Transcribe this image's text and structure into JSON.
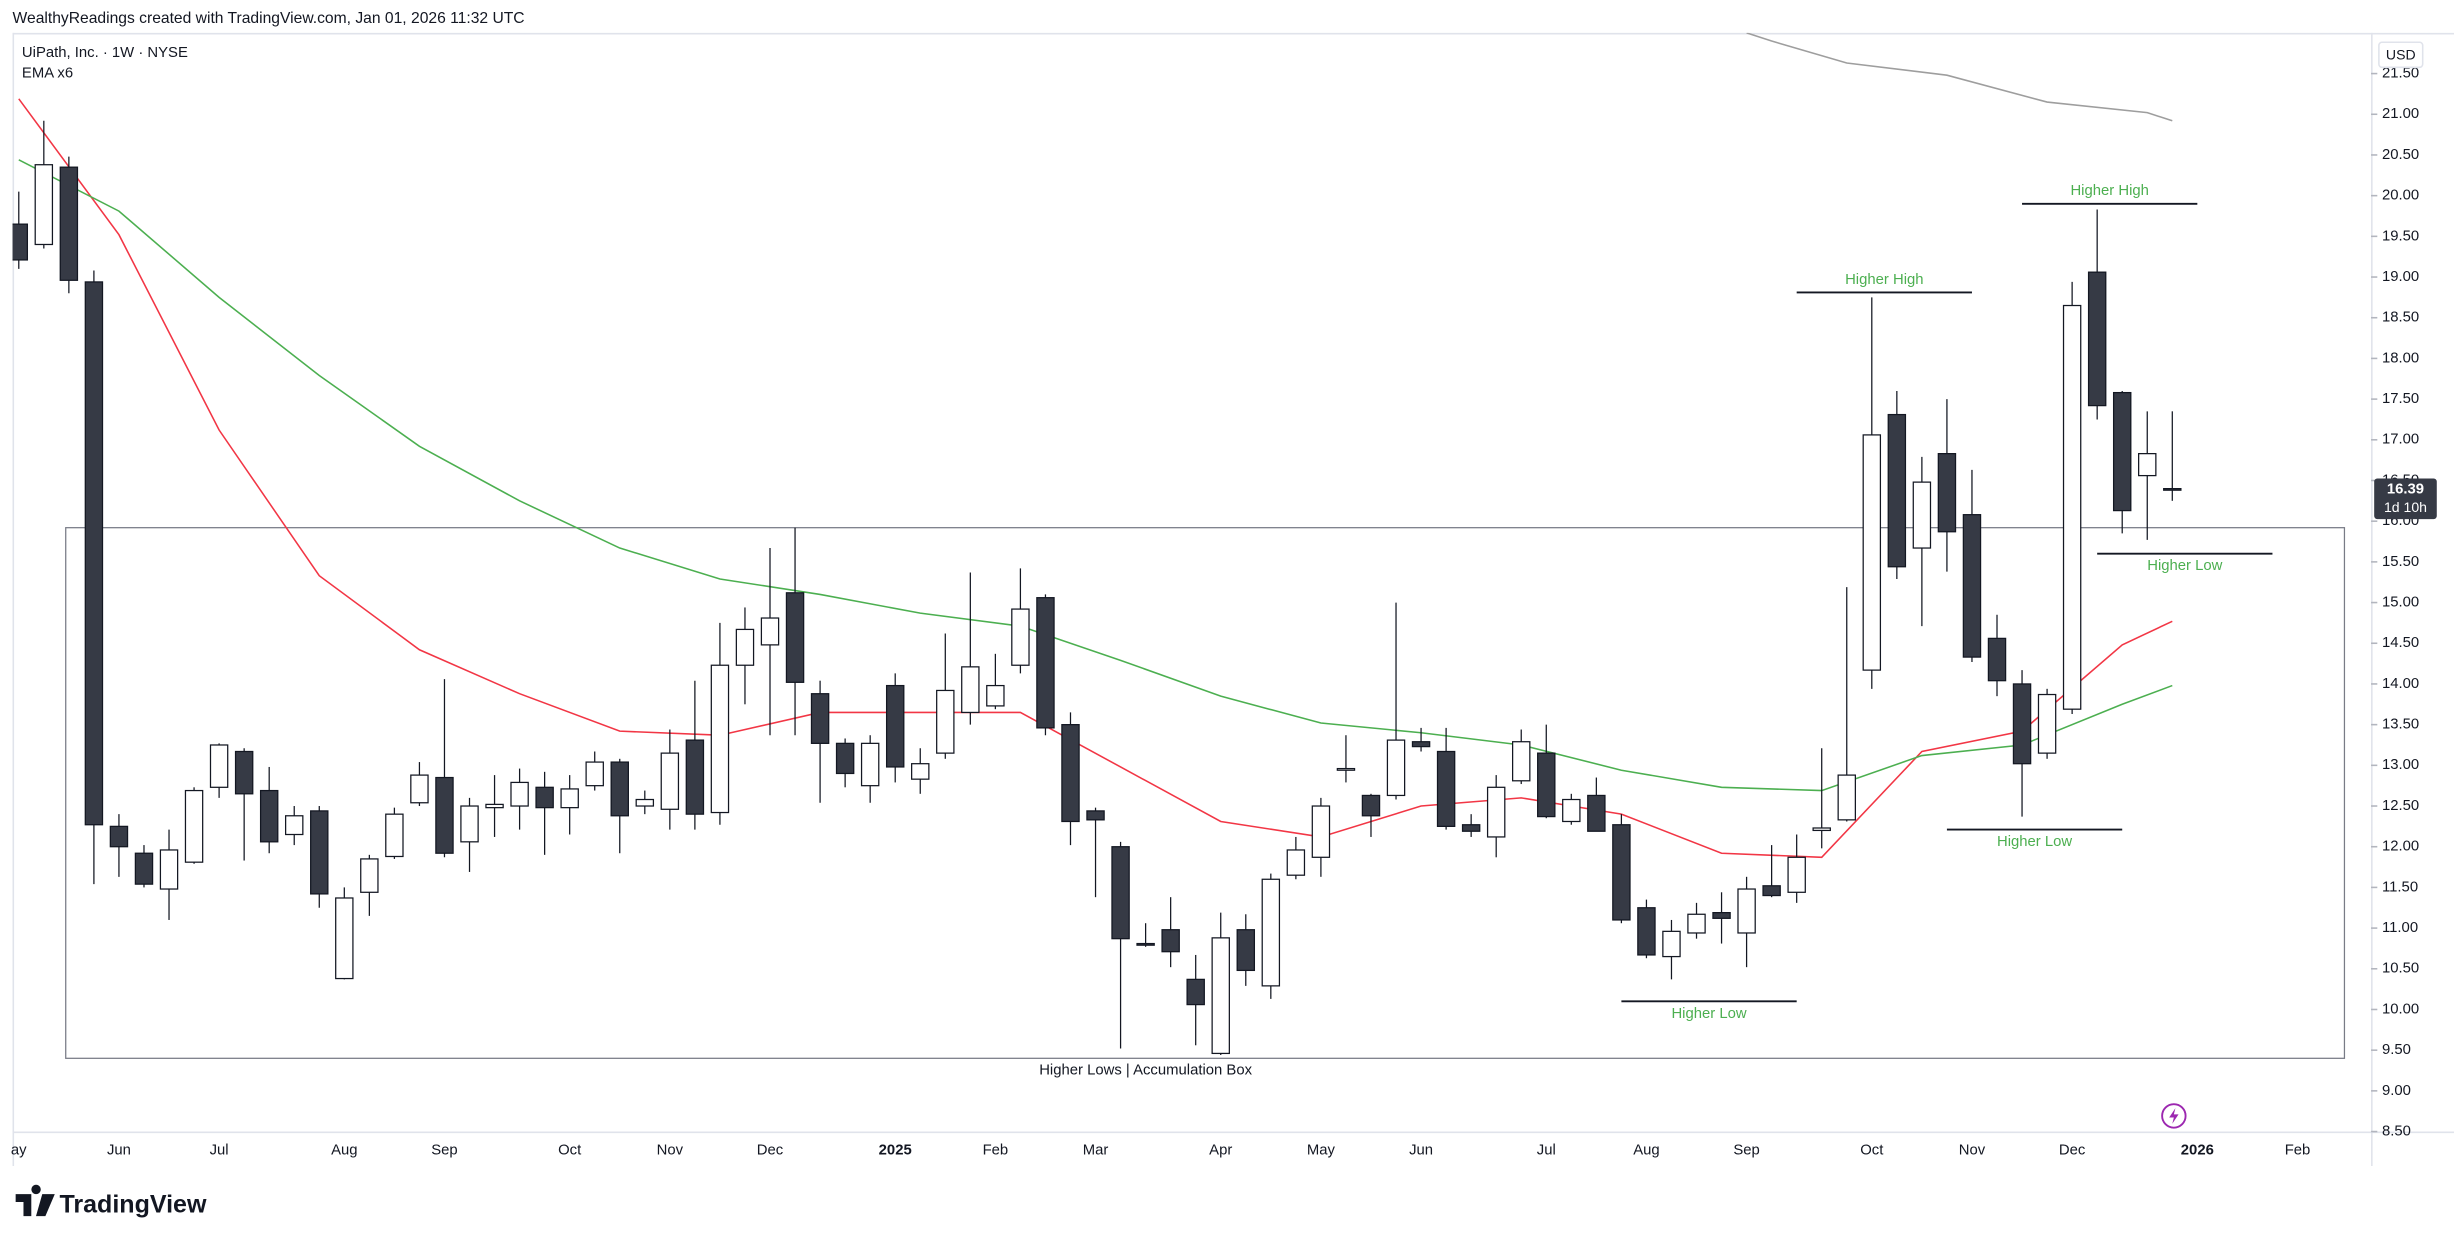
{
  "chart_data": {
    "type": "candlestick",
    "attribution": "WealthyReadings created with TradingView.com, Jan 01, 2026 11:32 UTC",
    "title": "UiPath, Inc. · 1W · NYSE",
    "indicator": "EMA x6",
    "currency": "USD",
    "countdown": "1d 10h",
    "brand": "TradingView",
    "up_color": "#ffffff",
    "down_color": "#363a45",
    "outline_color": "#131722",
    "categories": [
      "ay",
      null,
      null,
      null,
      "Jun",
      null,
      null,
      null,
      "Jul",
      null,
      null,
      null,
      null,
      "Aug",
      null,
      null,
      null,
      "Sep",
      null,
      null,
      null,
      null,
      "Oct",
      null,
      null,
      null,
      "Nov",
      null,
      null,
      null,
      "Dec",
      null,
      null,
      null,
      null,
      "2025",
      null,
      null,
      null,
      "Feb",
      null,
      null,
      null,
      "Mar",
      null,
      null,
      null,
      null,
      "Apr",
      null,
      null,
      null,
      "May",
      null,
      null,
      null,
      "Jun",
      null,
      null,
      null,
      null,
      "Jul",
      null,
      null,
      null,
      "Aug",
      null,
      null,
      null,
      "Sep",
      null,
      null,
      null,
      null,
      "Oct",
      null,
      null,
      null,
      "Nov",
      null,
      null,
      null,
      "Dec",
      null,
      null,
      null,
      null,
      "2026",
      null,
      null,
      null,
      "Feb"
    ],
    "open": [
      19.65,
      19.4,
      20.35,
      18.94,
      12.25,
      11.92,
      11.48,
      11.81,
      12.73,
      13.17,
      12.69,
      12.15,
      12.44,
      10.38,
      11.44,
      11.88,
      12.54,
      12.85,
      12.06,
      12.48,
      12.5,
      12.73,
      12.48,
      12.75,
      13.04,
      12.5,
      12.46,
      13.31,
      12.42,
      14.23,
      14.48,
      15.12,
      13.88,
      13.27,
      12.75,
      13.98,
      12.83,
      13.15,
      13.65,
      13.73,
      14.23,
      15.06,
      13.5,
      12.44,
      12.0,
      10.81,
      10.98,
      10.37,
      9.46,
      10.98,
      10.29,
      11.65,
      11.87,
      12.94,
      12.63,
      12.63,
      13.29,
      13.17,
      12.27,
      12.12,
      12.81,
      13.15,
      12.31,
      12.63,
      12.27,
      11.25,
      10.65,
      10.94,
      11.19,
      10.94,
      11.52,
      11.44,
      12.2,
      12.33,
      14.17,
      17.31,
      15.67,
      16.83,
      16.08,
      14.56,
      14.0,
      13.15,
      13.69,
      19.06,
      17.58,
      16.56,
      16.4,
      null,
      null,
      null,
      null,
      null
    ],
    "high": [
      20.05,
      20.92,
      20.48,
      19.08,
      12.4,
      12.02,
      12.21,
      12.73,
      13.27,
      13.21,
      12.98,
      12.5,
      12.5,
      11.5,
      11.9,
      12.48,
      13.04,
      14.06,
      12.6,
      12.88,
      12.96,
      12.92,
      12.88,
      13.17,
      13.08,
      12.69,
      13.44,
      14.04,
      14.75,
      14.94,
      15.67,
      15.92,
      14.04,
      13.33,
      13.37,
      14.13,
      13.21,
      14.62,
      15.37,
      14.37,
      15.42,
      15.1,
      13.65,
      12.48,
      12.06,
      11.06,
      11.38,
      10.67,
      11.19,
      11.17,
      11.67,
      12.12,
      12.6,
      13.37,
      12.65,
      15.0,
      13.46,
      13.46,
      12.4,
      12.88,
      13.44,
      13.5,
      12.65,
      12.85,
      12.4,
      11.35,
      11.1,
      11.31,
      11.44,
      11.63,
      12.02,
      12.15,
      13.21,
      15.19,
      18.75,
      17.6,
      16.79,
      17.5,
      16.63,
      14.85,
      14.17,
      13.94,
      18.94,
      19.83,
      17.6,
      17.35,
      17.35,
      null,
      null,
      null,
      null,
      null
    ],
    "low": [
      19.1,
      19.35,
      18.8,
      11.54,
      11.63,
      11.5,
      11.1,
      11.79,
      12.6,
      11.83,
      11.92,
      12.02,
      11.25,
      10.37,
      11.15,
      11.85,
      12.5,
      11.87,
      11.69,
      12.12,
      12.21,
      11.9,
      12.15,
      12.69,
      11.92,
      12.4,
      12.21,
      12.21,
      12.27,
      13.75,
      13.37,
      13.37,
      12.54,
      12.73,
      12.54,
      12.79,
      12.65,
      13.08,
      13.5,
      13.69,
      14.13,
      13.37,
      12.02,
      11.38,
      9.52,
      10.77,
      10.52,
      9.56,
      9.44,
      10.29,
      10.13,
      11.6,
      11.63,
      12.79,
      12.12,
      12.58,
      13.17,
      12.21,
      12.12,
      11.87,
      12.77,
      12.35,
      12.27,
      12.19,
      11.06,
      10.63,
      10.37,
      10.87,
      10.81,
      10.52,
      11.38,
      11.31,
      11.98,
      12.31,
      13.94,
      15.29,
      14.71,
      15.38,
      14.27,
      13.85,
      12.37,
      13.08,
      13.63,
      17.25,
      15.85,
      15.77,
      16.25,
      null,
      null,
      null,
      null,
      null
    ],
    "close": [
      19.21,
      20.38,
      18.96,
      12.27,
      12.0,
      11.54,
      11.96,
      12.69,
      13.25,
      12.65,
      12.06,
      12.38,
      11.42,
      11.37,
      11.85,
      12.4,
      12.88,
      11.92,
      12.5,
      12.52,
      12.79,
      12.48,
      12.71,
      13.04,
      12.38,
      12.58,
      13.15,
      12.4,
      14.23,
      14.67,
      14.81,
      14.02,
      13.27,
      12.9,
      13.27,
      12.98,
      13.02,
      13.92,
      14.21,
      13.98,
      14.92,
      13.46,
      12.31,
      12.33,
      10.87,
      10.79,
      10.71,
      10.06,
      10.88,
      10.48,
      11.6,
      11.96,
      12.5,
      12.96,
      12.38,
      13.31,
      13.23,
      12.25,
      12.19,
      12.73,
      13.29,
      12.37,
      12.58,
      12.19,
      11.1,
      10.67,
      10.96,
      11.17,
      11.12,
      11.48,
      11.4,
      11.87,
      12.23,
      12.88,
      17.06,
      15.44,
      16.48,
      15.87,
      14.33,
      14.04,
      13.02,
      13.87,
      18.65,
      17.42,
      16.13,
      16.83,
      16.39,
      null,
      null,
      null,
      null,
      null
    ],
    "ema": [
      {
        "color": "#f23645",
        "x": [
          0,
          4,
          8,
          12,
          16,
          20,
          24,
          28,
          32,
          36,
          40,
          44,
          48,
          52,
          56,
          60,
          64,
          68,
          72,
          76,
          80,
          84,
          86
        ],
        "values": [
          21.19,
          19.52,
          17.12,
          15.33,
          14.42,
          13.88,
          13.42,
          13.37,
          13.65,
          13.65,
          13.65,
          12.98,
          12.31,
          12.12,
          12.5,
          12.6,
          12.4,
          11.92,
          11.87,
          13.17,
          13.42,
          14.48,
          14.77
        ]
      },
      {
        "color": "#4caf50",
        "x": [
          0,
          4,
          8,
          12,
          16,
          20,
          24,
          28,
          32,
          36,
          40,
          44,
          48,
          52,
          56,
          60,
          64,
          68,
          72,
          76,
          80,
          84,
          86
        ],
        "values": [
          20.44,
          19.81,
          18.75,
          17.79,
          16.92,
          16.25,
          15.67,
          15.29,
          15.1,
          14.87,
          14.71,
          14.29,
          13.85,
          13.52,
          13.4,
          13.25,
          12.94,
          12.73,
          12.69,
          13.12,
          13.25,
          13.75,
          13.98
        ]
      },
      {
        "color": "#9e9e9e",
        "x": [
          69,
          70,
          73,
          77,
          81,
          85,
          86
        ],
        "values": [
          22.0,
          21.9,
          21.63,
          21.48,
          21.15,
          21.02,
          20.92
        ]
      }
    ],
    "box": {
      "label": "Higher Lows | Accumulation Box",
      "top": 15.92,
      "bottom": 9.4,
      "x": [
        2,
        93
      ]
    },
    "annotations": [
      {
        "text": "Higher High",
        "level": 18.81,
        "x": [
          71,
          78
        ],
        "side": "above"
      },
      {
        "text": "Higher High",
        "level": 19.9,
        "x": [
          80,
          87
        ],
        "side": "above"
      },
      {
        "text": "Higher Low",
        "level": 15.6,
        "x": [
          83,
          90
        ],
        "side": "below"
      },
      {
        "text": "Higher Low",
        "level": 12.21,
        "x": [
          77,
          84
        ],
        "side": "below"
      },
      {
        "text": "Higher Low",
        "level": 10.1,
        "x": [
          64,
          71
        ],
        "side": "below"
      }
    ],
    "ylim": [
      8.5,
      22.0
    ],
    "yticks": [
      {
        "value": 8.5,
        "label": "8.50"
      },
      {
        "value": 9,
        "label": "9.00"
      },
      {
        "value": 9.5,
        "label": "9.50"
      },
      {
        "value": 10,
        "label": "10.00"
      },
      {
        "value": 10.5,
        "label": "10.50"
      },
      {
        "value": 11,
        "label": "11.00"
      },
      {
        "value": 11.5,
        "label": "11.50"
      },
      {
        "value": 12,
        "label": "12.00"
      },
      {
        "value": 12.5,
        "label": "12.50"
      },
      {
        "value": 13,
        "label": "13.00"
      },
      {
        "value": 13.5,
        "label": "13.50"
      },
      {
        "value": 14,
        "label": "14.00"
      },
      {
        "value": 14.5,
        "label": "14.50"
      },
      {
        "value": 15,
        "label": "15.00"
      },
      {
        "value": 15.5,
        "label": "15.50"
      },
      {
        "value": 16,
        "label": "16.00"
      },
      {
        "value": 16.5,
        "label": "16.50"
      },
      {
        "value": 17,
        "label": "17.00"
      },
      {
        "value": 17.5,
        "label": "17.50"
      },
      {
        "value": 18,
        "label": "18.00"
      },
      {
        "value": 18.5,
        "label": "18.50"
      },
      {
        "value": 19,
        "label": "19.00"
      },
      {
        "value": 19.5,
        "label": "19.50"
      },
      {
        "value": 20,
        "label": "20.00"
      },
      {
        "value": 20.5,
        "label": "20.50"
      },
      {
        "value": 21,
        "label": "21.00"
      },
      {
        "value": 21.5,
        "label": "21.50"
      }
    ],
    "grid": false
  }
}
